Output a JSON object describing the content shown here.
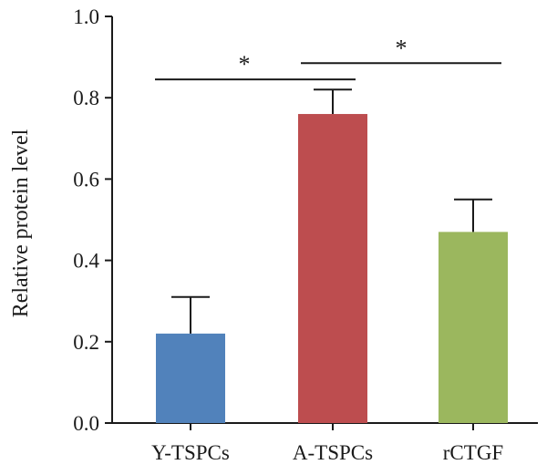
{
  "chart_data": {
    "type": "bar",
    "title": "",
    "xlabel": "",
    "ylabel": "Relative protein level",
    "ylim": [
      0.0,
      1.0
    ],
    "yticks": [
      "0.0",
      "0.2",
      "0.4",
      "0.6",
      "0.8",
      "1.0"
    ],
    "grid": false,
    "categories": [
      "Y-TSPCs",
      "A-TSPCs",
      "rCTGF"
    ],
    "values": [
      0.22,
      0.76,
      0.47
    ],
    "errors": [
      0.09,
      0.06,
      0.08
    ],
    "colors": [
      "#5182bb",
      "#bd4d4f",
      "#9bb75e"
    ],
    "significance": [
      {
        "from": 0,
        "to": 1,
        "y": 0.845,
        "label": "*"
      },
      {
        "from": 1,
        "to": 2,
        "y": 0.885,
        "label": "*"
      }
    ]
  }
}
